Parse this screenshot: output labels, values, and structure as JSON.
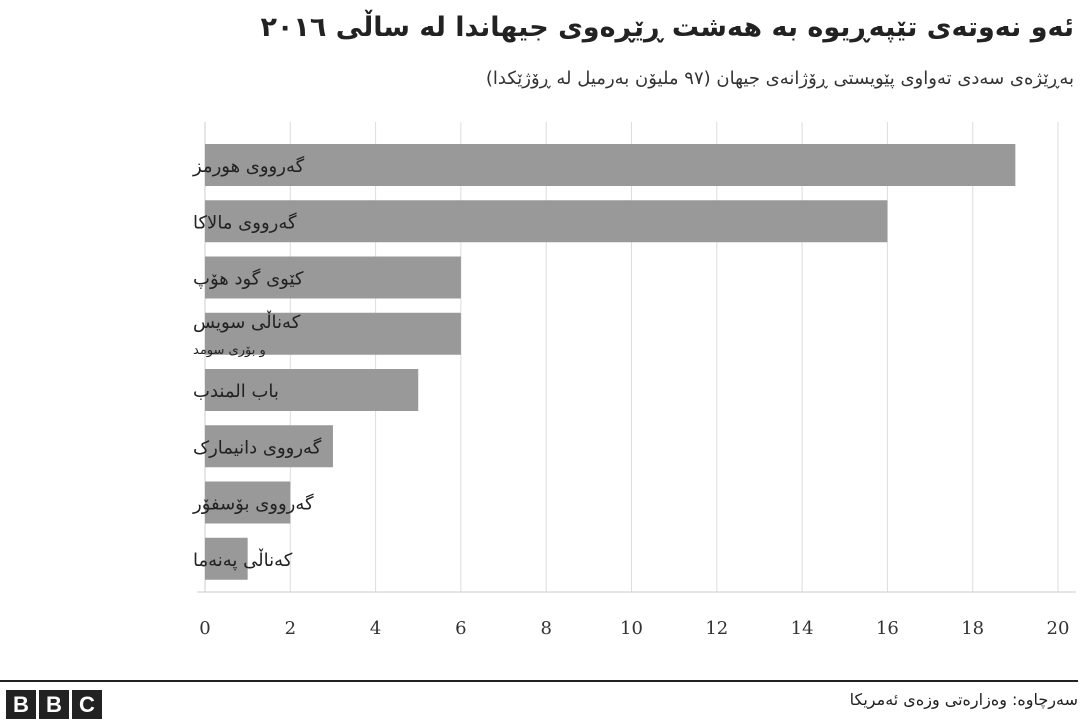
{
  "title": "ئەو نەوتەی تێپەڕیوە بە هەشت ڕێڕەوی جیهاندا لە ساڵی ٢٠١٦",
  "subtitle": "بەڕێژەی سەدی تەواوی پێویستی ڕۆژانەی جیهان (٩٧ ملیۆن بەرمیل لە ڕۆژێکدا)",
  "source": "سەرچاوە: وەزارەتی وزەی ئەمریکا",
  "logo": [
    "B",
    "B",
    "C"
  ],
  "colors": {
    "bar": "#999999",
    "grid": "#dddddd",
    "axis": "#cccccc",
    "text": "#222222"
  },
  "chart_data": {
    "type": "bar",
    "orientation": "horizontal",
    "categories": [
      {
        "label": "گەرووی هورمز",
        "sublabel": ""
      },
      {
        "label": "گەرووی مالاکا",
        "sublabel": ""
      },
      {
        "label": "کێوی گود هۆپ",
        "sublabel": ""
      },
      {
        "label": "کەناڵی سویس",
        "sublabel": "و بۆری سومد"
      },
      {
        "label": "باب المندب",
        "sublabel": ""
      },
      {
        "label": "گەرووی دانیمارک",
        "sublabel": ""
      },
      {
        "label": "گەرووی بۆسفۆر",
        "sublabel": ""
      },
      {
        "label": "کەناڵی پەنەما",
        "sublabel": ""
      }
    ],
    "values": [
      19,
      16,
      6,
      6,
      5,
      3,
      2,
      1
    ],
    "xlim": [
      0,
      20
    ],
    "xticks": [
      "0",
      "2",
      "4",
      "6",
      "8",
      "10",
      "12",
      "14",
      "16",
      "18",
      "20"
    ],
    "grid": true
  }
}
